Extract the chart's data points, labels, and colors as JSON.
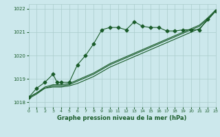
{
  "title": "Graphe pression niveau de la mer (hPa)",
  "bg_color": "#cce8ec",
  "grid_color": "#aacccc",
  "line_color": "#1a5c2a",
  "xlim": [
    0,
    23
  ],
  "ylim": [
    1017.8,
    1022.2
  ],
  "yticks": [
    1018,
    1019,
    1020,
    1021,
    1022
  ],
  "xticks": [
    0,
    1,
    2,
    3,
    4,
    5,
    6,
    7,
    8,
    9,
    10,
    11,
    12,
    13,
    14,
    15,
    16,
    17,
    18,
    19,
    20,
    21,
    22,
    23
  ],
  "s1_x": [
    0,
    1,
    2,
    3,
    4,
    5,
    6,
    7,
    8,
    9,
    10,
    11,
    12,
    13,
    14,
    15,
    16,
    17,
    18,
    19,
    20,
    21,
    22,
    23
  ],
  "s1_y": [
    1018.15,
    1018.35,
    1018.6,
    1018.65,
    1018.65,
    1018.7,
    1018.8,
    1018.95,
    1019.1,
    1019.3,
    1019.5,
    1019.65,
    1019.8,
    1019.95,
    1020.1,
    1020.25,
    1020.4,
    1020.55,
    1020.7,
    1020.85,
    1021.0,
    1021.15,
    1021.5,
    1021.9
  ],
  "s2_x": [
    0,
    1,
    2,
    3,
    4,
    5,
    6,
    7,
    8,
    9,
    10,
    11,
    12,
    13,
    14,
    15,
    16,
    17,
    18,
    19,
    20,
    21,
    22,
    23
  ],
  "s2_y": [
    1018.2,
    1018.4,
    1018.6,
    1018.7,
    1018.7,
    1018.75,
    1018.9,
    1019.05,
    1019.2,
    1019.4,
    1019.6,
    1019.75,
    1019.9,
    1020.05,
    1020.2,
    1020.35,
    1020.5,
    1020.65,
    1020.8,
    1020.95,
    1021.1,
    1021.25,
    1021.55,
    1021.9
  ],
  "s3_x": [
    0,
    1,
    2,
    3,
    4,
    5,
    6,
    7,
    8,
    9,
    10,
    11,
    12,
    13,
    14,
    15,
    16,
    17,
    18,
    19,
    20,
    21,
    22,
    23
  ],
  "s3_y": [
    1018.2,
    1018.4,
    1018.65,
    1018.75,
    1018.75,
    1018.8,
    1018.95,
    1019.1,
    1019.25,
    1019.45,
    1019.65,
    1019.8,
    1019.95,
    1020.1,
    1020.25,
    1020.4,
    1020.55,
    1020.7,
    1020.85,
    1021.0,
    1021.15,
    1021.3,
    1021.6,
    1021.95
  ],
  "s4_x": [
    0,
    1,
    2,
    3,
    3.5,
    4,
    5,
    6,
    7,
    8,
    9,
    10,
    11,
    12,
    13,
    14,
    15,
    16,
    17,
    18,
    19,
    20,
    21,
    22,
    23
  ],
  "s4_y": [
    1018.2,
    1018.6,
    1018.85,
    1019.2,
    1018.85,
    1018.85,
    1018.85,
    1019.6,
    1020.0,
    1020.5,
    1021.1,
    1021.2,
    1021.2,
    1021.1,
    1021.45,
    1021.25,
    1021.2,
    1021.2,
    1021.05,
    1021.05,
    1021.1,
    1021.1,
    1021.1,
    1021.55,
    1021.9
  ]
}
